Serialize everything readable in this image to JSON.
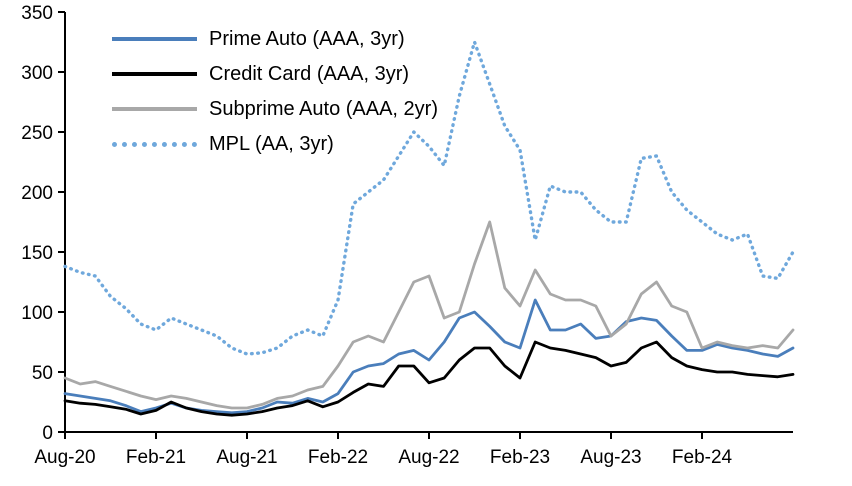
{
  "chart_data": {
    "type": "line",
    "title": "",
    "xlabel": "",
    "ylabel": "",
    "ylim": [
      0,
      350
    ],
    "y_ticks": [
      0,
      50,
      100,
      150,
      200,
      250,
      300,
      350
    ],
    "x_tick_labels": [
      "Aug-20",
      "Feb-21",
      "Aug-21",
      "Feb-22",
      "Aug-22",
      "Feb-23",
      "Aug-23",
      "Feb-24"
    ],
    "x_tick_indices": [
      0,
      6,
      12,
      18,
      24,
      30,
      36,
      42
    ],
    "grid": false,
    "legend_position": "top-left",
    "x": [
      "Aug-20",
      "Sep-20",
      "Oct-20",
      "Nov-20",
      "Dec-20",
      "Jan-21",
      "Feb-21",
      "Mar-21",
      "Apr-21",
      "May-21",
      "Jun-21",
      "Jul-21",
      "Aug-21",
      "Sep-21",
      "Oct-21",
      "Nov-21",
      "Dec-21",
      "Jan-22",
      "Feb-22",
      "Mar-22",
      "Apr-22",
      "May-22",
      "Jun-22",
      "Jul-22",
      "Aug-22",
      "Sep-22",
      "Oct-22",
      "Nov-22",
      "Dec-22",
      "Jan-23",
      "Feb-23",
      "Mar-23",
      "Apr-23",
      "May-23",
      "Jun-23",
      "Jul-23",
      "Aug-23",
      "Sep-23",
      "Oct-23",
      "Nov-23",
      "Dec-23",
      "Jan-24",
      "Feb-24",
      "Mar-24",
      "Apr-24",
      "May-24",
      "Jun-24",
      "Jul-24",
      "Aug-24"
    ],
    "series": [
      {
        "name": "Prime Auto (AAA, 3yr)",
        "color": "#4a7ebb",
        "style": "solid",
        "values": [
          32,
          30,
          28,
          26,
          22,
          17,
          20,
          24,
          20,
          18,
          17,
          16,
          17,
          20,
          25,
          24,
          28,
          25,
          32,
          50,
          55,
          57,
          65,
          68,
          60,
          75,
          95,
          100,
          88,
          75,
          70,
          110,
          85,
          85,
          90,
          78,
          80,
          92,
          95,
          93,
          80,
          68,
          68,
          73,
          70,
          68,
          65,
          63,
          70
        ]
      },
      {
        "name": "Credit Card (AAA, 3yr)",
        "color": "#000000",
        "style": "solid",
        "values": [
          26,
          24,
          23,
          21,
          19,
          15,
          18,
          25,
          20,
          17,
          15,
          14,
          15,
          17,
          20,
          22,
          26,
          21,
          25,
          33,
          40,
          38,
          55,
          55,
          41,
          45,
          60,
          70,
          70,
          55,
          45,
          75,
          70,
          68,
          65,
          62,
          55,
          58,
          70,
          75,
          62,
          55,
          52,
          50,
          50,
          48,
          47,
          46,
          48
        ]
      },
      {
        "name": "Subprime Auto (AAA, 2yr)",
        "color": "#a8a8a8",
        "style": "solid",
        "values": [
          45,
          40,
          42,
          38,
          34,
          30,
          27,
          30,
          28,
          25,
          22,
          20,
          20,
          23,
          28,
          30,
          35,
          38,
          55,
          75,
          80,
          75,
          100,
          125,
          130,
          95,
          100,
          140,
          175,
          120,
          105,
          135,
          115,
          110,
          110,
          105,
          80,
          90,
          115,
          125,
          105,
          100,
          70,
          75,
          72,
          70,
          72,
          70,
          85
        ]
      },
      {
        "name": "MPL (AA, 3yr)",
        "color": "#6fa8dc",
        "style": "dotted",
        "values": [
          138,
          133,
          130,
          113,
          103,
          90,
          85,
          95,
          90,
          85,
          80,
          70,
          65,
          66,
          70,
          80,
          85,
          80,
          110,
          190,
          200,
          210,
          230,
          250,
          238,
          222,
          280,
          325,
          290,
          255,
          235,
          160,
          205,
          200,
          200,
          185,
          175,
          175,
          228,
          230,
          200,
          185,
          175,
          165,
          160,
          165,
          130,
          128,
          150
        ]
      }
    ]
  }
}
